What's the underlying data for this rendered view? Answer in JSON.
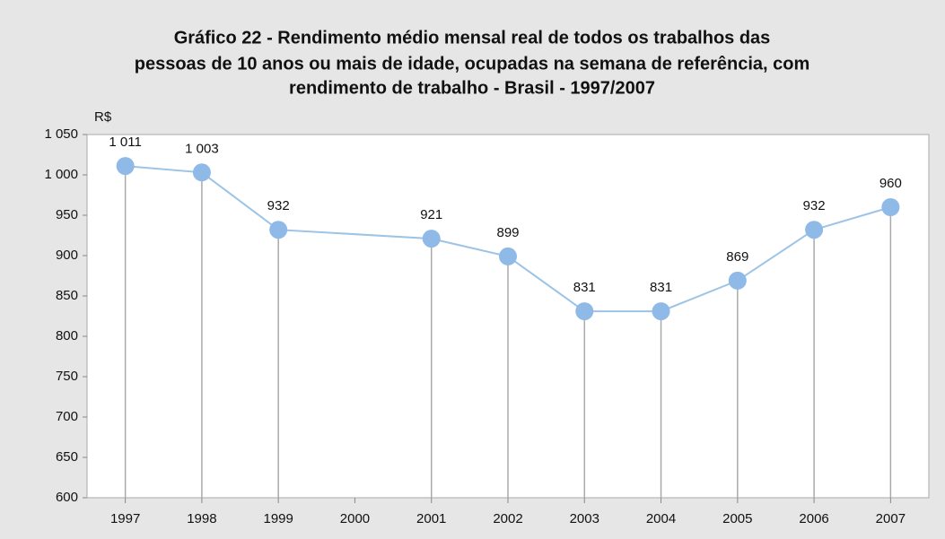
{
  "chart_data": {
    "type": "line",
    "title": [
      "Gráfico 22 - Rendimento médio mensal real de todos os trabalhos das",
      "pessoas de 10 anos ou mais de idade, ocupadas na semana de referência, com",
      "rendimento de trabalho - Brasil - 1997/2007"
    ],
    "y_label": "R$",
    "x": [
      1997,
      1998,
      1999,
      2001,
      2002,
      2003,
      2004,
      2005,
      2006,
      2007
    ],
    "xlim": [
      1996.5,
      2007.5
    ],
    "xticks": [
      1997,
      1998,
      1999,
      2000,
      2001,
      2002,
      2003,
      2004,
      2005,
      2006,
      2007
    ],
    "ylim": [
      600,
      1050
    ],
    "yticks": [
      600,
      650,
      700,
      750,
      800,
      850,
      900,
      950,
      {
        "value": 1000,
        "label": "1 000"
      },
      {
        "value": 1050,
        "label": "1 050"
      }
    ],
    "series": [
      {
        "color": "#9dc3e6",
        "marker_color": "#8fb9e6",
        "values": [
          1011,
          1003,
          932,
          921,
          899,
          831,
          831,
          869,
          932,
          960
        ],
        "value_labels": [
          "1 011",
          "1 003",
          "932",
          "921",
          "899",
          "831",
          "831",
          "869",
          "932",
          "960"
        ]
      }
    ],
    "grid": false
  }
}
